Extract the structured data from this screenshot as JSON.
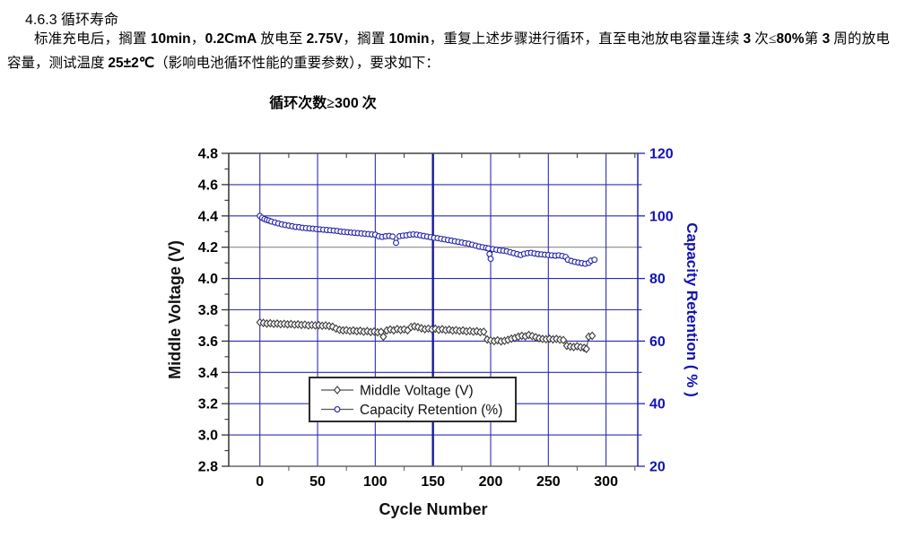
{
  "page": {
    "heading_number": "4.6.3",
    "heading_title": "循环寿命",
    "paragraph_segments": [
      {
        "t": "标准充电后，搁置 ",
        "sans": false
      },
      {
        "t": "10min",
        "sans": true
      },
      {
        "t": "，",
        "sans": false
      },
      {
        "t": "0.2CmA",
        "sans": true
      },
      {
        "t": " 放电至 ",
        "sans": false
      },
      {
        "t": "2.75V",
        "sans": true
      },
      {
        "t": "，搁置 ",
        "sans": false
      },
      {
        "t": "10min",
        "sans": true
      },
      {
        "t": "，重复上述步骤进行循环，直至电池放电容量连续 ",
        "sans": false
      },
      {
        "t": "3",
        "sans": true
      },
      {
        "t": " 次≤",
        "sans": false
      },
      {
        "t": "80%",
        "sans": true
      },
      {
        "t": "第 ",
        "sans": false
      },
      {
        "t": "3",
        "sans": true
      },
      {
        "t": " 周的放电容量，测试温度 ",
        "sans": false
      },
      {
        "t": "25±2℃",
        "sans": true
      },
      {
        "t": "（影响电池循环性能的重要参数），要求如下：",
        "sans": false
      }
    ],
    "requirement_segments": [
      {
        "t": "循环次数≥",
        "sans": false
      },
      {
        "t": "300",
        "sans": true
      },
      {
        "t": " 次",
        "sans": false
      }
    ]
  },
  "colors": {
    "grid_blue": "#2d2dae",
    "grid_blue_dark": "#1a1a9e",
    "gray_line": "#8a8a8a",
    "axis_top": "#444444",
    "axis_bottom": "#666666",
    "axis_left": "#333333",
    "axis_right_blue": "#2323b0",
    "right_label_blue": "#1212b2",
    "left_label_black": "#000000",
    "legend_border": "#2b2b2b",
    "legend_text": "#111111",
    "legend_line": "#555555"
  },
  "chart_data": {
    "type": "line",
    "title": "",
    "xlabel": "Cycle Number",
    "ylabel_left": "Middle Voltage (V)",
    "ylabel_right": "Capacity Retention ( % )",
    "xlim": [
      -27,
      327.5
    ],
    "left_ylim": [
      2.8,
      4.8
    ],
    "right_ylim": [
      20,
      120
    ],
    "x_major_ticks": [
      0,
      50,
      100,
      150,
      200,
      250,
      300
    ],
    "x_minor_ticks": [
      25,
      75,
      125,
      175,
      225,
      275,
      325
    ],
    "left_major_ticks": [
      2.8,
      3.0,
      3.2,
      3.4,
      3.6,
      3.8,
      4.0,
      4.2,
      4.4,
      4.6,
      4.8
    ],
    "left_minor_ticks": [
      2.9,
      3.1,
      3.3,
      3.5,
      3.7,
      3.9,
      4.1,
      4.3,
      4.5,
      4.7
    ],
    "right_major_ticks": [
      20,
      40,
      60,
      80,
      100,
      120
    ],
    "right_minor_ticks": [
      30,
      50,
      70,
      90,
      110
    ],
    "emphasized_x_gridline": 150,
    "gray_left_gridline": 4.2,
    "grid": true,
    "legend_position": "bottom-center-inside",
    "series": [
      {
        "name": "Middle Voltage (V)",
        "axis": "left",
        "marker": "diamond",
        "color": "#3a3a3a",
        "data": [
          [
            0,
            3.72
          ],
          [
            3,
            3.716
          ],
          [
            6,
            3.712
          ],
          [
            9,
            3.714
          ],
          [
            12,
            3.71
          ],
          [
            15,
            3.712
          ],
          [
            18,
            3.708
          ],
          [
            21,
            3.71
          ],
          [
            24,
            3.707
          ],
          [
            27,
            3.709
          ],
          [
            30,
            3.705
          ],
          [
            33,
            3.707
          ],
          [
            36,
            3.703
          ],
          [
            39,
            3.705
          ],
          [
            42,
            3.7
          ],
          [
            45,
            3.703
          ],
          [
            48,
            3.7
          ],
          [
            51,
            3.702
          ],
          [
            54,
            3.698
          ],
          [
            57,
            3.7
          ],
          [
            60,
            3.696
          ],
          [
            63,
            3.692
          ],
          [
            66,
            3.68
          ],
          [
            69,
            3.672
          ],
          [
            72,
            3.668
          ],
          [
            75,
            3.67
          ],
          [
            78,
            3.665
          ],
          [
            81,
            3.668
          ],
          [
            84,
            3.663
          ],
          [
            87,
            3.666
          ],
          [
            90,
            3.66
          ],
          [
            93,
            3.664
          ],
          [
            96,
            3.658
          ],
          [
            99,
            3.661
          ],
          [
            102,
            3.656
          ],
          [
            105,
            3.659
          ],
          [
            107,
            3.628
          ],
          [
            110,
            3.668
          ],
          [
            113,
            3.674
          ],
          [
            116,
            3.669
          ],
          [
            119,
            3.677
          ],
          [
            122,
            3.671
          ],
          [
            125,
            3.675
          ],
          [
            128,
            3.669
          ],
          [
            131,
            3.69
          ],
          [
            134,
            3.694
          ],
          [
            137,
            3.689
          ],
          [
            140,
            3.682
          ],
          [
            143,
            3.676
          ],
          [
            146,
            3.68
          ],
          [
            149,
            3.675
          ],
          [
            152,
            3.679
          ],
          [
            155,
            3.672
          ],
          [
            158,
            3.676
          ],
          [
            161,
            3.67
          ],
          [
            164,
            3.673
          ],
          [
            167,
            3.667
          ],
          [
            170,
            3.67
          ],
          [
            173,
            3.665
          ],
          [
            176,
            3.668
          ],
          [
            179,
            3.662
          ],
          [
            182,
            3.665
          ],
          [
            185,
            3.66
          ],
          [
            188,
            3.663
          ],
          [
            191,
            3.657
          ],
          [
            194,
            3.66
          ],
          [
            197,
            3.61
          ],
          [
            200,
            3.604
          ],
          [
            203,
            3.6
          ],
          [
            206,
            3.605
          ],
          [
            209,
            3.598
          ],
          [
            212,
            3.602
          ],
          [
            215,
            3.608
          ],
          [
            218,
            3.615
          ],
          [
            221,
            3.62
          ],
          [
            224,
            3.628
          ],
          [
            227,
            3.634
          ],
          [
            230,
            3.63
          ],
          [
            233,
            3.639
          ],
          [
            236,
            3.632
          ],
          [
            239,
            3.625
          ],
          [
            242,
            3.618
          ],
          [
            245,
            3.614
          ],
          [
            248,
            3.612
          ],
          [
            251,
            3.615
          ],
          [
            254,
            3.611
          ],
          [
            257,
            3.614
          ],
          [
            260,
            3.609
          ],
          [
            263,
            3.607
          ],
          [
            266,
            3.57
          ],
          [
            269,
            3.565
          ],
          [
            272,
            3.562
          ],
          [
            275,
            3.567
          ],
          [
            278,
            3.561
          ],
          [
            281,
            3.557
          ],
          [
            283,
            3.55
          ],
          [
            285,
            3.628
          ],
          [
            288,
            3.634
          ]
        ]
      },
      {
        "name": "Capacity Retention (%)",
        "axis": "right",
        "marker": "circle",
        "color": "#2323a8",
        "data": [
          [
            0,
            100
          ],
          [
            2,
            99.4
          ],
          [
            4,
            99.0
          ],
          [
            6,
            98.7
          ],
          [
            8,
            98.5
          ],
          [
            10,
            98.2
          ],
          [
            13,
            97.9
          ],
          [
            16,
            97.6
          ],
          [
            19,
            97.3
          ],
          [
            22,
            97.1
          ],
          [
            25,
            96.9
          ],
          [
            28,
            96.7
          ],
          [
            31,
            96.5
          ],
          [
            34,
            96.4
          ],
          [
            37,
            96.2
          ],
          [
            40,
            96.1
          ],
          [
            43,
            96.0
          ],
          [
            46,
            95.9
          ],
          [
            49,
            95.8
          ],
          [
            52,
            95.7
          ],
          [
            55,
            95.6
          ],
          [
            58,
            95.5
          ],
          [
            61,
            95.4
          ],
          [
            64,
            95.3
          ],
          [
            67,
            95.2
          ],
          [
            70,
            95.0
          ],
          [
            73,
            94.9
          ],
          [
            76,
            94.8
          ],
          [
            79,
            94.7
          ],
          [
            82,
            94.6
          ],
          [
            85,
            94.5
          ],
          [
            88,
            94.4
          ],
          [
            91,
            94.3
          ],
          [
            94,
            94.2
          ],
          [
            97,
            94.1
          ],
          [
            100,
            94.0
          ],
          [
            103,
            93.5
          ],
          [
            106,
            93.3
          ],
          [
            109,
            93.5
          ],
          [
            112,
            93.6
          ],
          [
            115,
            93.4
          ],
          [
            118,
            91.4
          ],
          [
            121,
            93.5
          ],
          [
            124,
            93.7
          ],
          [
            127,
            93.8
          ],
          [
            130,
            94.0
          ],
          [
            133,
            94.1
          ],
          [
            136,
            94.0
          ],
          [
            139,
            93.8
          ],
          [
            142,
            93.6
          ],
          [
            145,
            93.4
          ],
          [
            148,
            93.2
          ],
          [
            151,
            93.0
          ],
          [
            154,
            92.9
          ],
          [
            157,
            92.7
          ],
          [
            160,
            92.5
          ],
          [
            163,
            92.3
          ],
          [
            166,
            92.1
          ],
          [
            169,
            91.9
          ],
          [
            172,
            91.7
          ],
          [
            175,
            91.5
          ],
          [
            178,
            91.3
          ],
          [
            181,
            91.1
          ],
          [
            184,
            90.8
          ],
          [
            187,
            90.5
          ],
          [
            190,
            90.2
          ],
          [
            193,
            90.0
          ],
          [
            196,
            89.8
          ],
          [
            198,
            89.6
          ],
          [
            199,
            87.8
          ],
          [
            200,
            86.3
          ],
          [
            202,
            89.4
          ],
          [
            205,
            89.2
          ],
          [
            208,
            89.0
          ],
          [
            211,
            88.9
          ],
          [
            214,
            88.7
          ],
          [
            217,
            88.4
          ],
          [
            220,
            88.1
          ],
          [
            223,
            87.8
          ],
          [
            226,
            87.5
          ],
          [
            229,
            87.9
          ],
          [
            232,
            88.1
          ],
          [
            235,
            88.2
          ],
          [
            238,
            88.0
          ],
          [
            241,
            87.8
          ],
          [
            244,
            87.7
          ],
          [
            247,
            87.6
          ],
          [
            250,
            87.5
          ],
          [
            253,
            87.4
          ],
          [
            256,
            87.3
          ],
          [
            259,
            87.4
          ],
          [
            262,
            87.2
          ],
          [
            265,
            86.9
          ],
          [
            267,
            86.0
          ],
          [
            270,
            85.6
          ],
          [
            273,
            85.3
          ],
          [
            276,
            85.1
          ],
          [
            279,
            84.9
          ],
          [
            282,
            84.7
          ],
          [
            285,
            85.0
          ],
          [
            287,
            85.7
          ],
          [
            290,
            86.0
          ]
        ]
      }
    ]
  }
}
